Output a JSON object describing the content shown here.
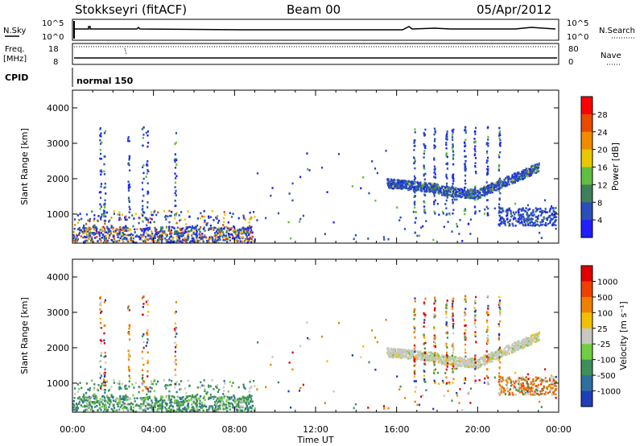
{
  "header": {
    "station": "Stokkseyri (fitACF)",
    "beam": "Beam 00",
    "date": "05/Apr/2012"
  },
  "top_panels": {
    "nsky_label": "N.Sky",
    "nsky_ticks": [
      "10^5",
      "10^0"
    ],
    "nsearch_label": "N.Search",
    "nsearch_ticks": [
      "10^5",
      "10^0"
    ],
    "freq_label_1": "Freq.",
    "freq_label_2": "[MHz]",
    "freq_ticks": [
      "18",
      "8"
    ],
    "nave_label": "Nave",
    "nave_ticks": [
      "80",
      "0"
    ],
    "cpid_label": "CPID",
    "cpid_value": "normal 150"
  },
  "chart_data": [
    {
      "type": "heatmap",
      "quantity": "Power",
      "ylabel": "Slant Range [km]",
      "xlabel": "Time UT",
      "ylim": [
        180,
        4500
      ],
      "xlim_hours": [
        0,
        24
      ],
      "y_ticks": [
        "1000",
        "2000",
        "3000",
        "4000"
      ],
      "x_ticks": [
        "00:00",
        "04:00",
        "08:00",
        "12:00",
        "16:00",
        "20:00",
        "00:00"
      ],
      "colorbar": {
        "label": "Power [dB]",
        "ticks": [
          "4",
          "8",
          "12",
          "16",
          "20",
          "24",
          "28"
        ],
        "colors": [
          "#1f1fff",
          "#2b4fb8",
          "#3f7f5a",
          "#5fbf40",
          "#e8c800",
          "#f08c00",
          "#e84a00",
          "#ff0000"
        ]
      }
    },
    {
      "type": "heatmap",
      "quantity": "Velocity",
      "ylabel": "Slant Range [km]",
      "xlabel": "Time UT",
      "ylim": [
        180,
        4500
      ],
      "xlim_hours": [
        0,
        24
      ],
      "y_ticks": [
        "1000",
        "2000",
        "3000",
        "4000"
      ],
      "x_ticks": [
        "00:00",
        "04:00",
        "08:00",
        "12:00",
        "16:00",
        "20:00",
        "00:00"
      ],
      "colorbar": {
        "label": "Velocity [m s⁻¹]",
        "ticks": [
          "1000",
          "500",
          "100",
          "25",
          "-25",
          "-100",
          "-500",
          "-1000"
        ],
        "colors": [
          "#1f3fb8",
          "#2f6fa0",
          "#3f8f5a",
          "#6fcf40",
          "#c8c8c0",
          "#f0c000",
          "#f08000",
          "#f04000",
          "#e00000"
        ]
      }
    }
  ]
}
